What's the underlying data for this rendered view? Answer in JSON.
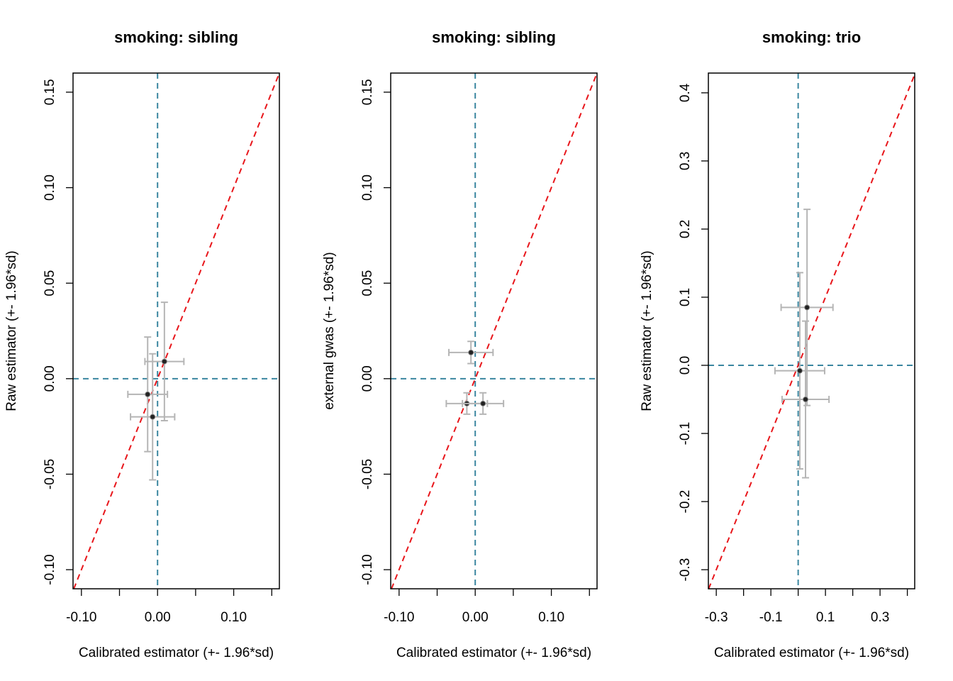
{
  "chart_data": [
    {
      "type": "scatter",
      "title": "smoking: sibling",
      "x_label": "Calibrated estimator (+- 1.96*sd)",
      "y_label": "Raw estimator (+- 1.96*sd)",
      "x": [
        0.009,
        -0.013,
        -0.0065
      ],
      "y": [
        0.009,
        -0.0082,
        -0.02
      ],
      "xerr": [
        0.0256,
        0.026,
        0.029
      ],
      "yerr": [
        0.031,
        0.03,
        0.033
      ],
      "xlim": [
        -0.111,
        0.16
      ],
      "ylim": [
        -0.11,
        0.16
      ],
      "xticks": [
        {
          "value": -0.1,
          "label": "-0.10"
        },
        {
          "value": 0,
          "label": "0.00"
        },
        {
          "value": 0.1,
          "label": "0.10"
        }
      ],
      "xticks_minor": [
        -0.05,
        0.05,
        0.15
      ],
      "yticks": [
        {
          "value": -0.1,
          "label": "-0.10"
        },
        {
          "value": -0.05,
          "label": "-0.05"
        },
        {
          "value": 0,
          "label": "0.00"
        },
        {
          "value": 0.05,
          "label": "0.05"
        },
        {
          "value": 0.1,
          "label": "0.10"
        },
        {
          "value": 0.15,
          "label": "0.15"
        }
      ],
      "hline": 0,
      "vline": 0,
      "diagonal": true,
      "point_color": "#222222",
      "errorbar_color": "#b5b5b5",
      "reference_color": "#3a86a0",
      "diagonal_color": "#e8161b"
    },
    {
      "type": "scatter",
      "title": "smoking: sibling",
      "x_label": "Calibrated estimator (+- 1.96*sd)",
      "y_label": "external gwas (+- 1.96*sd)",
      "x": [
        -0.0056,
        -0.011,
        0.0102
      ],
      "y": [
        0.0137,
        -0.013,
        -0.013
      ],
      "xerr": [
        0.029,
        0.027,
        0.027
      ],
      "yerr": [
        0.0058,
        0.0056,
        0.0056
      ],
      "xlim": [
        -0.111,
        0.16
      ],
      "ylim": [
        -0.11,
        0.16
      ],
      "xticks": [
        {
          "value": -0.1,
          "label": "-0.10"
        },
        {
          "value": 0,
          "label": "0.00"
        },
        {
          "value": 0.1,
          "label": "0.10"
        }
      ],
      "xticks_minor": [
        -0.05,
        0.05,
        0.15
      ],
      "yticks": [
        {
          "value": -0.1,
          "label": "-0.10"
        },
        {
          "value": -0.05,
          "label": "-0.05"
        },
        {
          "value": 0,
          "label": "0.00"
        },
        {
          "value": 0.05,
          "label": "0.05"
        },
        {
          "value": 0.1,
          "label": "0.10"
        },
        {
          "value": 0.15,
          "label": "0.15"
        }
      ],
      "hline": 0,
      "vline": 0,
      "diagonal": true,
      "point_color": "#222222",
      "errorbar_color": "#b5b5b5",
      "reference_color": "#3a86a0",
      "diagonal_color": "#e8161b"
    },
    {
      "type": "scatter",
      "title": "smoking: trio",
      "x_label": "Calibrated estimator (+- 1.96*sd)",
      "y_label": "Raw estimator (+- 1.96*sd)",
      "x": [
        0.0325,
        0.006,
        0.027
      ],
      "y": [
        0.085,
        -0.008,
        -0.05
      ],
      "xerr": [
        0.095,
        0.091,
        0.086
      ],
      "yerr": [
        0.144,
        0.144,
        0.115
      ],
      "xlim": [
        -0.329,
        0.427
      ],
      "ylim": [
        -0.328,
        0.429
      ],
      "xticks": [
        -0.3,
        -0.1,
        0.1,
        0.3
      ],
      "xticks_minor": [
        -0.2,
        0,
        0.2,
        0.4
      ],
      "yticks": [
        -0.3,
        -0.2,
        -0.1,
        {
          "value": 0,
          "label": "0.0"
        },
        0.1,
        0.2,
        0.3,
        0.4
      ],
      "hline": 0,
      "vline": 0,
      "diagonal": true,
      "point_color": "#222222",
      "errorbar_color": "#b5b5b5",
      "reference_color": "#3a86a0",
      "diagonal_color": "#e8161b"
    }
  ]
}
